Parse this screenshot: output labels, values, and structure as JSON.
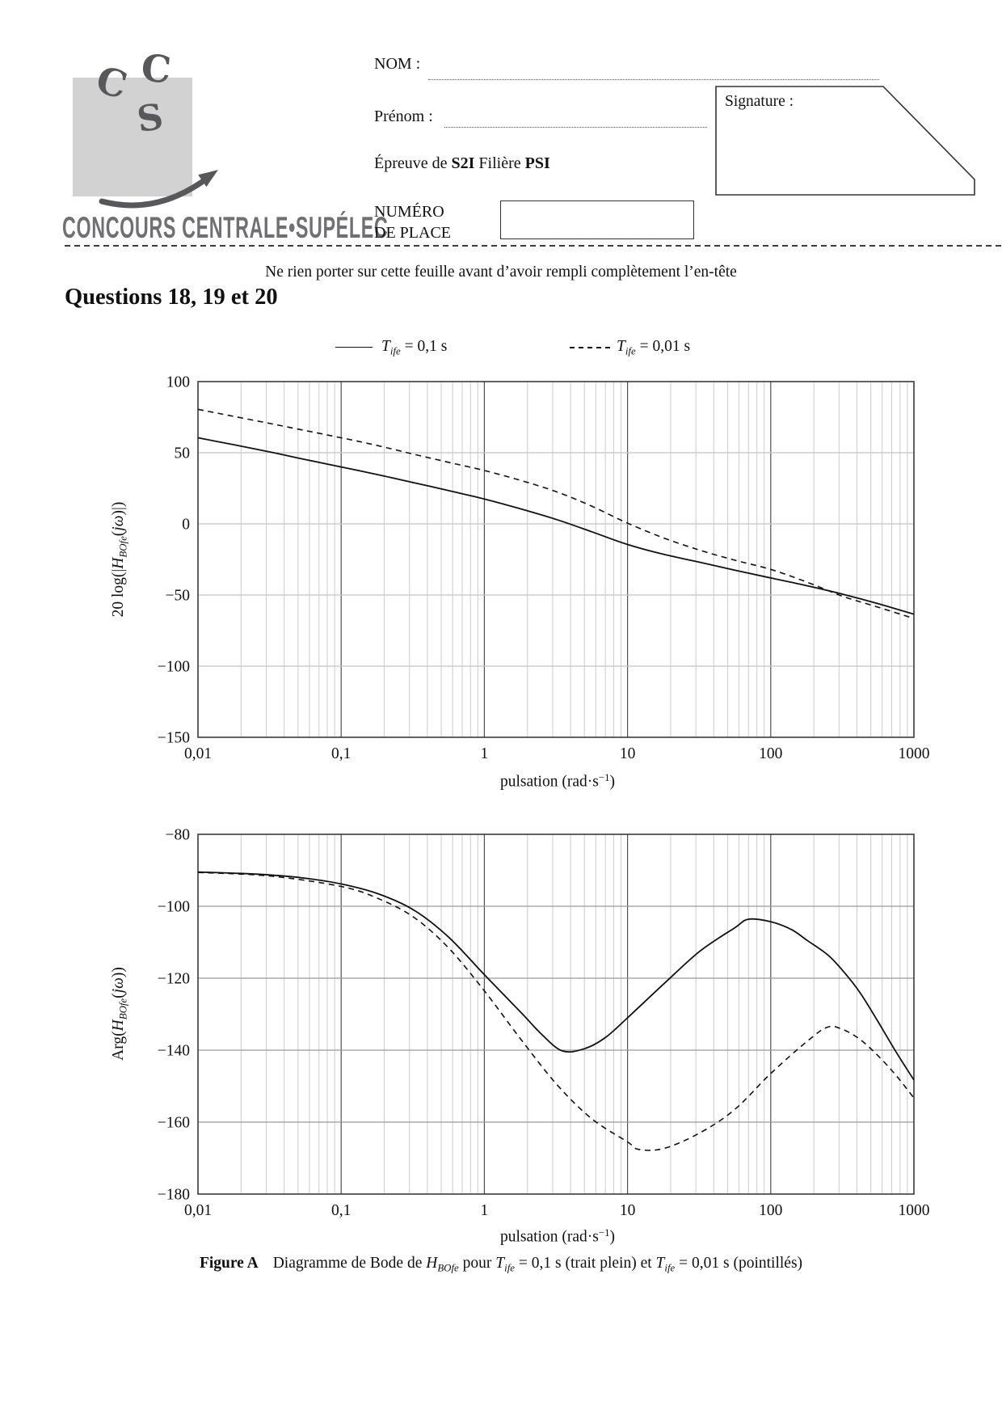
{
  "colors": {
    "paper": "#ffffff",
    "ink": "#111111",
    "logo_square": "#d2d2d2",
    "logo_glyph": "#58585a",
    "wordmark": "#707073",
    "frame": "#2e2e2e",
    "grid_minor": "#cbcbcb",
    "grid_major_v": "#4f4f4f",
    "grid_h_mag": "#c3c3c3",
    "grid_h_phase": "#9a9a9a",
    "curve": "#111111"
  },
  "header": {
    "logo": {
      "letters": [
        "C",
        "C",
        "S"
      ],
      "wordmark": "CONCOURS CENTRALE•SUPÉLEC"
    },
    "fields": {
      "nom_label": "NOM :",
      "prenom_label": "Prénom :",
      "epreuve_segments": [
        {
          "t": "Épreuve de "
        },
        {
          "t": "S2I",
          "b": 1
        },
        {
          "t": " Filière "
        },
        {
          "t": "PSI",
          "b": 1
        }
      ],
      "numero_line1": "NUMÉRO",
      "numero_line2": "DE PLACE",
      "signature_label": "Signature :"
    },
    "notice": "Ne rien porter sur cette feuille avant d’avoir rempli complètement l’en-tête"
  },
  "heading": "Questions 18, 19 et 20",
  "legend": {
    "items": [
      {
        "style": "solid",
        "label": "T_ife = 0,1 s",
        "label_segments": [
          {
            "t": "T",
            "i": 1
          },
          {
            "t": "ife",
            "i": 1,
            "sub": 1
          },
          {
            "t": " = 0,1 s"
          }
        ]
      },
      {
        "style": "dashed",
        "label": "T_ife = 0,01 s",
        "label_segments": [
          {
            "t": "T",
            "i": 1
          },
          {
            "t": "ife",
            "i": 1,
            "sub": 1
          },
          {
            "t": " = 0,01 s"
          }
        ]
      }
    ]
  },
  "chart_data": [
    {
      "type": "line",
      "x_scale": "log",
      "xlim": [
        0.01,
        1000
      ],
      "ylim": [
        -150,
        100
      ],
      "grid": true,
      "x_ticks": [
        0.01,
        0.1,
        1,
        10,
        100,
        1000
      ],
      "x_tick_labels": [
        "0,01",
        "0,1",
        "1",
        "10",
        "100",
        "1000"
      ],
      "y_ticks": [
        100,
        50,
        0,
        -50,
        -100,
        -150
      ],
      "y_tick_labels": [
        "100",
        "50",
        "0",
        "−50",
        "−100",
        "−150"
      ],
      "y_grid_values": [
        50,
        0,
        -50,
        -100
      ],
      "xlabel": "pulsation (rad·s⁻¹)",
      "ylabel": "20 log(|H_BOfe(jω)|)",
      "xlabel_segments": [
        {
          "t": "pulsation (rad·s"
        },
        {
          "t": "−1",
          "sup": 1
        },
        {
          "t": ")"
        }
      ],
      "ylabel_segments": [
        {
          "t": "20 log(|"
        },
        {
          "t": "H",
          "i": 1
        },
        {
          "t": "BOfe",
          "i": 1,
          "sub": 1
        },
        {
          "t": "("
        },
        {
          "t": "jω",
          "i": 1
        },
        {
          "t": ")|)"
        }
      ],
      "series": [
        {
          "name": "T_ife = 0,1 s",
          "style": "solid",
          "points": [
            [
              0.01,
              60.5
            ],
            [
              0.018,
              55.5
            ],
            [
              0.032,
              50.5
            ],
            [
              0.056,
              45.2
            ],
            [
              0.1,
              40
            ],
            [
              0.18,
              34.6
            ],
            [
              0.32,
              29
            ],
            [
              0.56,
              23.4
            ],
            [
              1,
              17.5
            ],
            [
              1.8,
              10.5
            ],
            [
              3.2,
              3
            ],
            [
              5.6,
              -5.5
            ],
            [
              10,
              -14.5
            ],
            [
              18,
              -21.5
            ],
            [
              32,
              -27
            ],
            [
              56,
              -32.5
            ],
            [
              100,
              -38
            ],
            [
              180,
              -43.5
            ],
            [
              320,
              -49.5
            ],
            [
              560,
              -56
            ],
            [
              1000,
              -63.5
            ]
          ]
        },
        {
          "name": "T_ife = 0,01 s",
          "style": "dashed",
          "points": [
            [
              0.01,
              80.5
            ],
            [
              0.032,
              70.5
            ],
            [
              0.1,
              60.5
            ],
            [
              0.18,
              55
            ],
            [
              0.32,
              49
            ],
            [
              0.56,
              43.3
            ],
            [
              1,
              37.5
            ],
            [
              1.8,
              30.5
            ],
            [
              3.2,
              22.5
            ],
            [
              5.6,
              12.5
            ],
            [
              10,
              0.5
            ],
            [
              18,
              -10
            ],
            [
              32,
              -18.5
            ],
            [
              56,
              -25.5
            ],
            [
              100,
              -32
            ],
            [
              180,
              -41
            ],
            [
              320,
              -51
            ],
            [
              560,
              -58.5
            ],
            [
              1000,
              -66.5
            ]
          ]
        }
      ]
    },
    {
      "type": "line",
      "x_scale": "log",
      "xlim": [
        0.01,
        1000
      ],
      "ylim": [
        -180,
        -80
      ],
      "grid": true,
      "x_ticks": [
        0.01,
        0.1,
        1,
        10,
        100,
        1000
      ],
      "x_tick_labels": [
        "0,01",
        "0,1",
        "1",
        "10",
        "100",
        "1000"
      ],
      "y_ticks": [
        -80,
        -100,
        -120,
        -140,
        -160,
        -180
      ],
      "y_tick_labels": [
        "−80",
        "−100",
        "−120",
        "−140",
        "−160",
        "−180"
      ],
      "y_grid_values": [
        -100,
        -120,
        -140,
        -160
      ],
      "xlabel": "pulsation (rad·s⁻¹)",
      "ylabel": "Arg(H_BOfe(jω))",
      "xlabel_segments": [
        {
          "t": "pulsation (rad·s"
        },
        {
          "t": "−1",
          "sup": 1
        },
        {
          "t": ")"
        }
      ],
      "ylabel_segments": [
        {
          "t": "Arg("
        },
        {
          "t": "H",
          "i": 1
        },
        {
          "t": "BOfe",
          "i": 1,
          "sub": 1
        },
        {
          "t": "("
        },
        {
          "t": "jω",
          "i": 1
        },
        {
          "t": "))"
        }
      ],
      "series": [
        {
          "name": "T_ife = 0,1 s",
          "style": "solid",
          "points": [
            [
              0.01,
              -90.5
            ],
            [
              0.018,
              -90.8
            ],
            [
              0.032,
              -91.3
            ],
            [
              0.056,
              -92.2
            ],
            [
              0.1,
              -93.8
            ],
            [
              0.18,
              -96.5
            ],
            [
              0.32,
              -101
            ],
            [
              0.56,
              -108.5
            ],
            [
              1,
              -119
            ],
            [
              1.8,
              -129.5
            ],
            [
              2.5,
              -135.5
            ],
            [
              3.5,
              -140.2
            ],
            [
              5,
              -139.6
            ],
            [
              7,
              -136.5
            ],
            [
              10,
              -131
            ],
            [
              18,
              -121.5
            ],
            [
              32,
              -112.5
            ],
            [
              56,
              -106
            ],
            [
              70,
              -103.6
            ],
            [
              100,
              -104.3
            ],
            [
              140,
              -106.5
            ],
            [
              180,
              -109.5
            ],
            [
              250,
              -113.5
            ],
            [
              320,
              -118
            ],
            [
              420,
              -124
            ],
            [
              560,
              -132
            ],
            [
              750,
              -140.5
            ],
            [
              1000,
              -148.3
            ]
          ]
        },
        {
          "name": "T_ife = 0,01 s",
          "style": "dashed",
          "points": [
            [
              0.01,
              -90.6
            ],
            [
              0.032,
              -91.6
            ],
            [
              0.1,
              -94.5
            ],
            [
              0.18,
              -97.8
            ],
            [
              0.32,
              -103
            ],
            [
              0.56,
              -111.5
            ],
            [
              1,
              -123.5
            ],
            [
              1.8,
              -137
            ],
            [
              3.2,
              -149.5
            ],
            [
              5.6,
              -159
            ],
            [
              10,
              -165.5
            ],
            [
              12,
              -167.6
            ],
            [
              18,
              -167.3
            ],
            [
              32,
              -163
            ],
            [
              56,
              -156.5
            ],
            [
              100,
              -146.5
            ],
            [
              180,
              -137.5
            ],
            [
              250,
              -133.6
            ],
            [
              320,
              -134.3
            ],
            [
              420,
              -137
            ],
            [
              560,
              -141.5
            ],
            [
              750,
              -147
            ],
            [
              1000,
              -153.3
            ]
          ]
        }
      ]
    }
  ],
  "caption": {
    "tag": "Figure A",
    "segments": [
      {
        "t": "Diagramme de Bode de "
      },
      {
        "t": "H",
        "i": 1
      },
      {
        "t": "BOfe",
        "i": 1,
        "sub": 1
      },
      {
        "t": " pour "
      },
      {
        "t": "T",
        "i": 1
      },
      {
        "t": "ife",
        "i": 1,
        "sub": 1
      },
      {
        "t": " = 0,1 s (trait plein) et "
      },
      {
        "t": "T",
        "i": 1
      },
      {
        "t": "ife",
        "i": 1,
        "sub": 1
      },
      {
        "t": " = 0,01 s (pointillés)"
      }
    ]
  }
}
